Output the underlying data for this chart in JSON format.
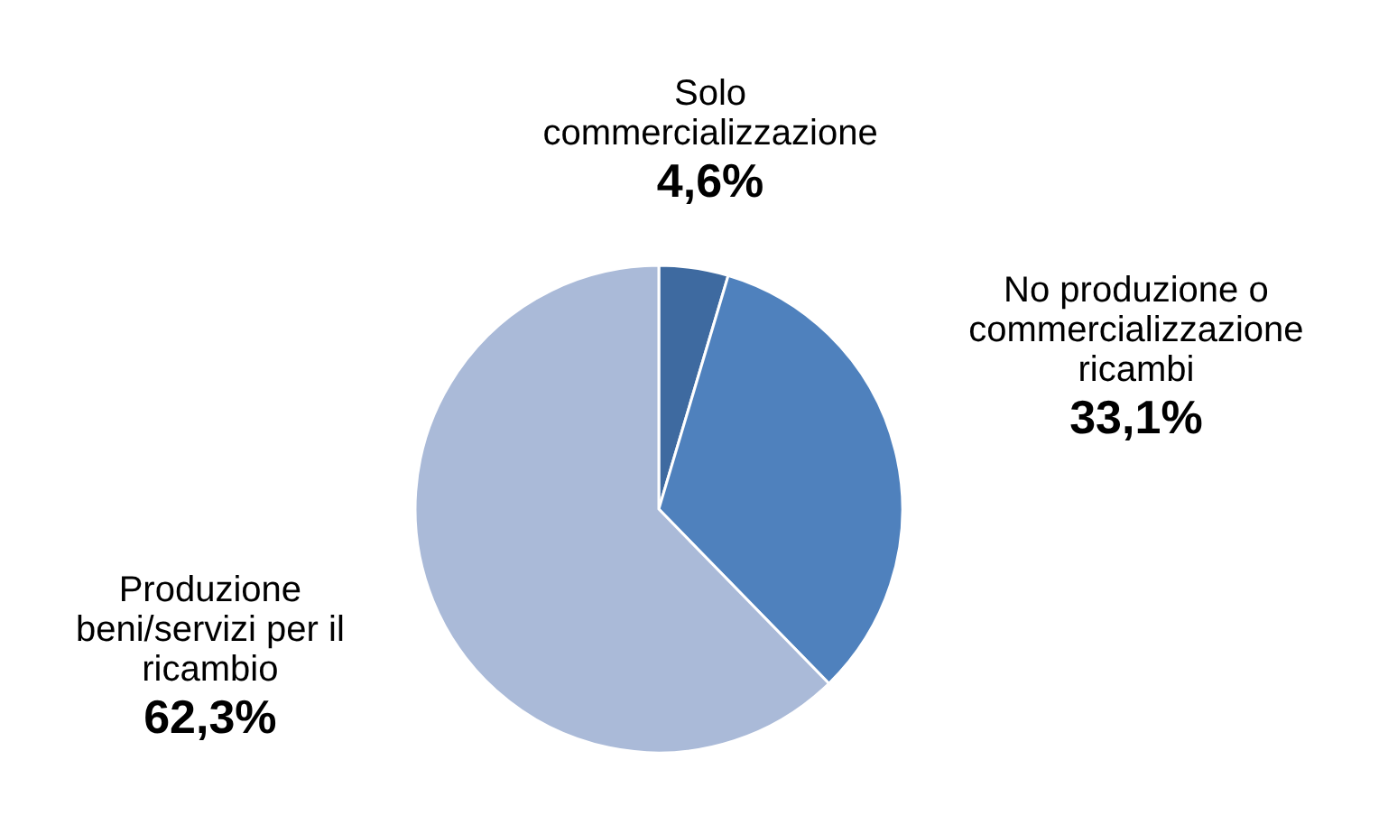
{
  "chart_data": {
    "type": "pie",
    "categories": [
      "Solo commercializzazione",
      "No produzione o commercializzazione ricambi",
      "Produzione beni/servizi per il ricambio"
    ],
    "values": [
      4.6,
      33.1,
      62.3
    ],
    "value_labels": [
      "4,6%",
      "33,1%",
      "62,3%"
    ],
    "colors": [
      "#3e6aa0",
      "#4f81bd",
      "#aabad8"
    ],
    "legend": false
  }
}
